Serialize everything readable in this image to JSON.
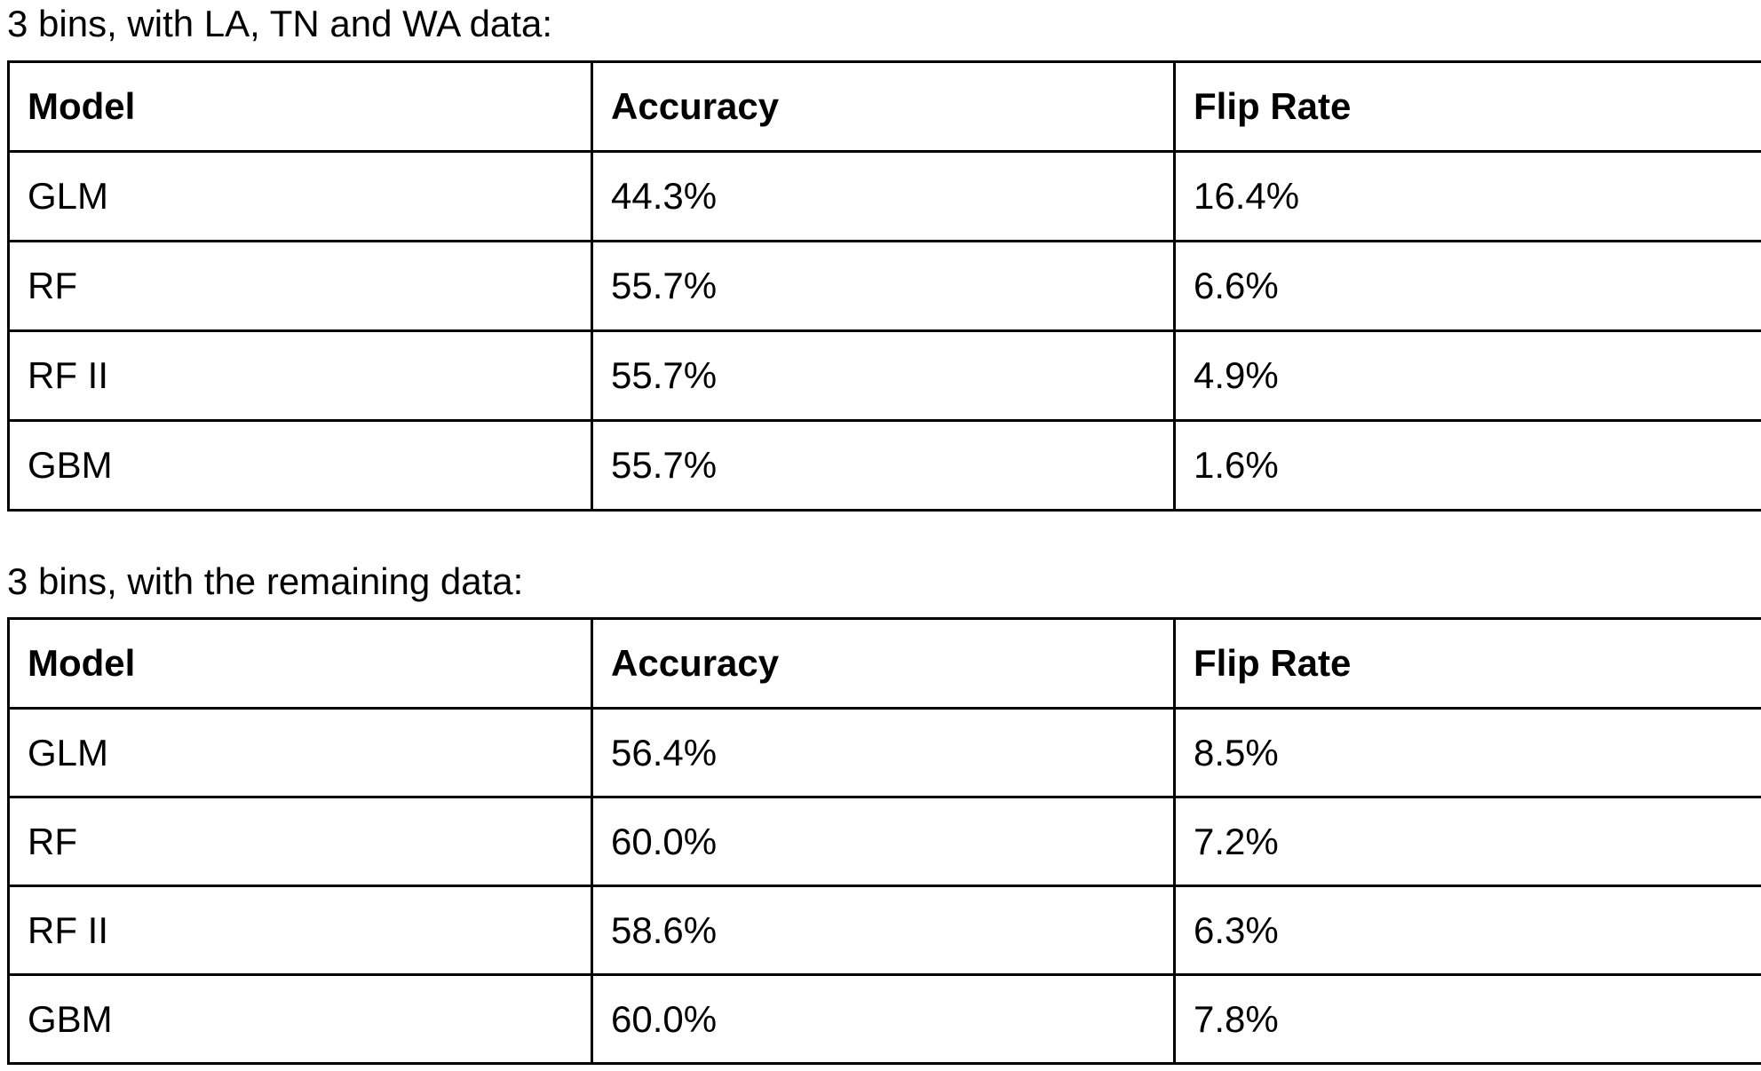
{
  "sections": [
    {
      "caption": "3 bins, with LA, TN and WA data:",
      "headers": [
        "Model",
        "Accuracy",
        "Flip Rate"
      ],
      "rows": [
        [
          "GLM",
          "44.3%",
          "16.4%"
        ],
        [
          "RF",
          "55.7%",
          "6.6%"
        ],
        [
          "RF II",
          "55.7%",
          "4.9%"
        ],
        [
          "GBM",
          "55.7%",
          "1.6%"
        ]
      ]
    },
    {
      "caption": "3 bins, with the remaining data:",
      "headers": [
        "Model",
        "Accuracy",
        "Flip Rate"
      ],
      "rows": [
        [
          "GLM",
          "56.4%",
          "8.5%"
        ],
        [
          "RF",
          "60.0%",
          "7.2%"
        ],
        [
          "RF II",
          "58.6%",
          "6.3%"
        ],
        [
          "GBM",
          "60.0%",
          "7.8%"
        ]
      ]
    }
  ]
}
